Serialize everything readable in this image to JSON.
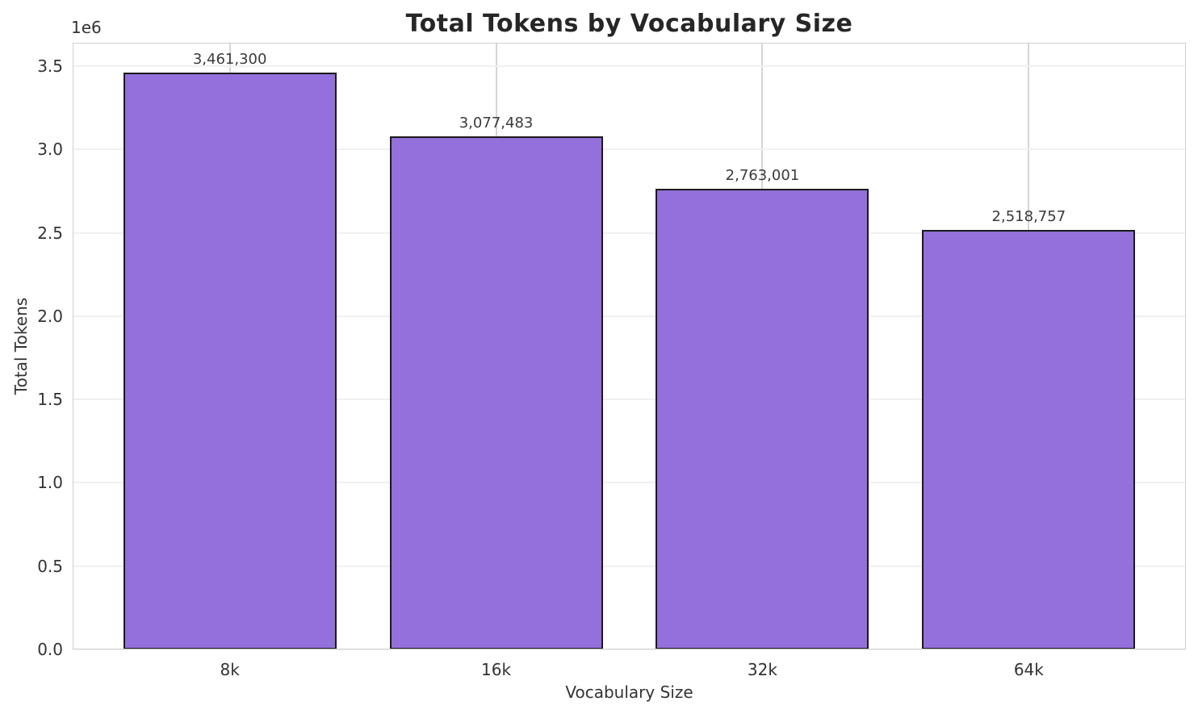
{
  "chart_data": {
    "type": "bar",
    "title": "Total Tokens by Vocabulary Size",
    "xlabel": "Vocabulary Size",
    "ylabel": "Total Tokens",
    "y_offset_label": "1e6",
    "categories": [
      "8k",
      "16k",
      "32k",
      "64k"
    ],
    "values": [
      3461300,
      3077483,
      2763001,
      2518757
    ],
    "bar_labels": [
      "3,461,300",
      "3,077,483",
      "2,763,001",
      "2,518,757"
    ],
    "ylim": [
      0,
      3640000
    ],
    "ytick_values": [
      0,
      500000,
      1000000,
      1500000,
      2000000,
      2500000,
      3000000,
      3500000
    ],
    "ytick_labels": [
      "0.0",
      "0.5",
      "1.0",
      "1.5",
      "2.0",
      "2.5",
      "3.0",
      "3.5"
    ],
    "grid": true,
    "legend_position": "none",
    "colors": {
      "bar_fill": "#9370DB",
      "bar_edge": "#1a1a1a",
      "grid_horizontal": "#f0f0f0",
      "grid_vertical": "#d5d5d5",
      "spine": "#cfcfcf",
      "title_text": "#262626",
      "tick_text": "#333333",
      "value_text": "#3a3a3a"
    }
  }
}
